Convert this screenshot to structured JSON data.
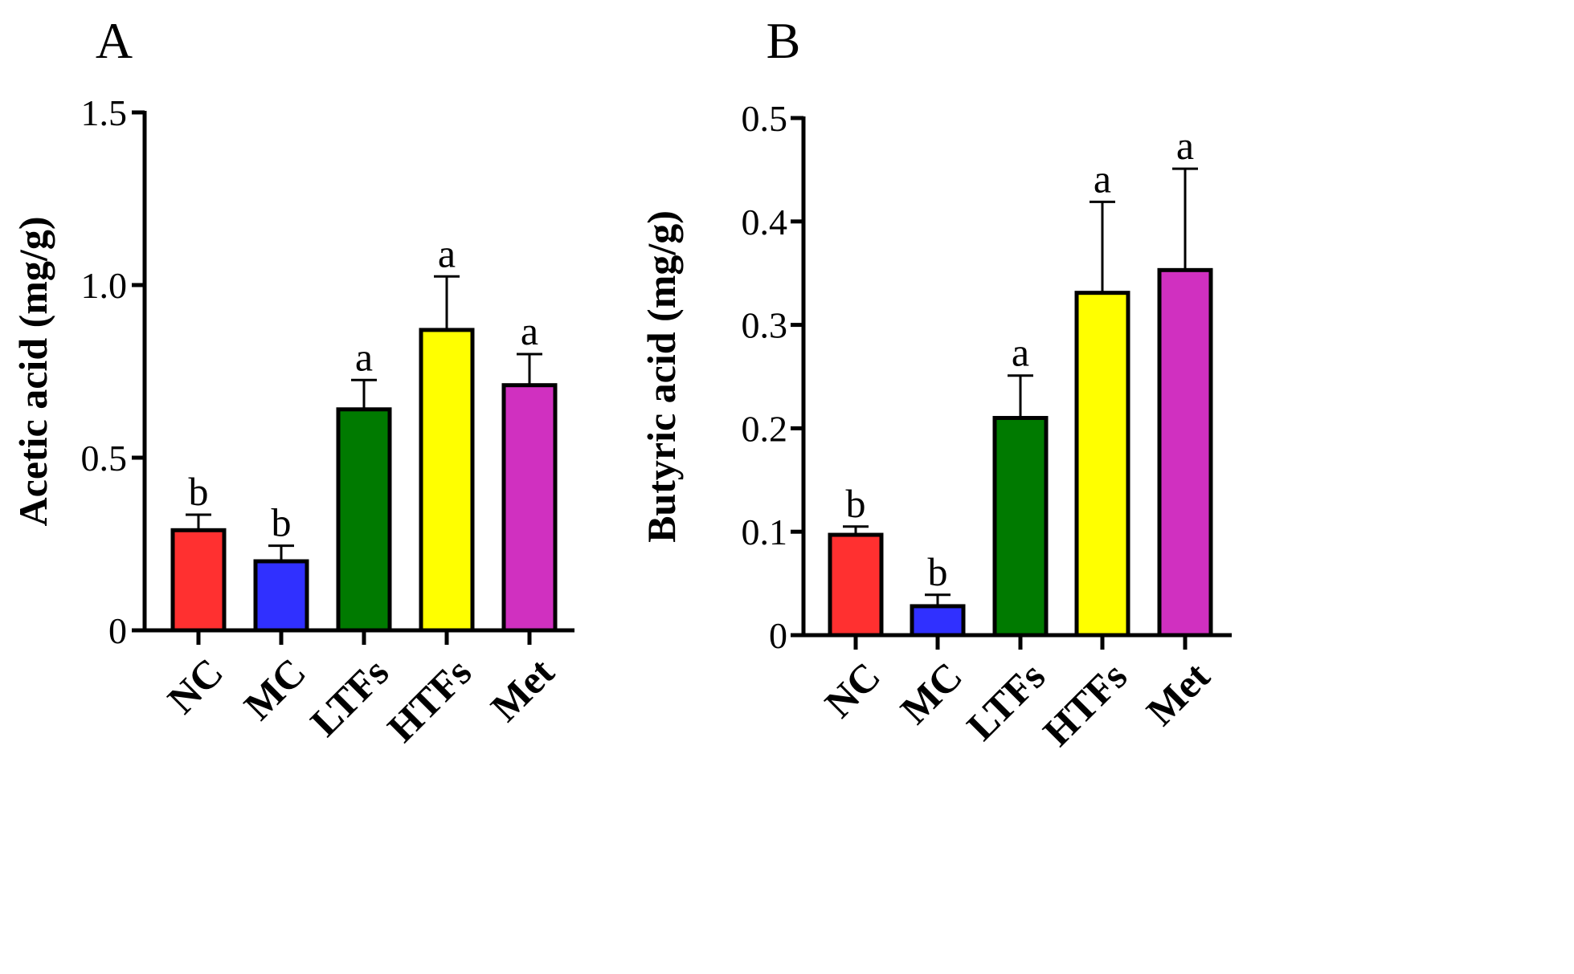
{
  "chart_data": [
    {
      "panel_label": "A",
      "type": "bar",
      "title": "",
      "xlabel": "",
      "ylabel": "Acetic acid (mg/g)",
      "ylim": [
        0,
        1.5
      ],
      "yticks": [
        {
          "value": 0,
          "label": "0"
        },
        {
          "value": 0.5,
          "label": "0.5"
        },
        {
          "value": 1.0,
          "label": "1.0"
        },
        {
          "value": 1.5,
          "label": "1.5"
        }
      ],
      "categories": [
        "NC",
        "MC",
        "LTFs",
        "HTFs",
        "Met"
      ],
      "values": [
        0.29,
        0.2,
        0.64,
        0.87,
        0.71
      ],
      "errors": [
        0.045,
        0.045,
        0.085,
        0.155,
        0.09
      ],
      "letters": [
        "b",
        "b",
        "a",
        "a",
        "a"
      ],
      "colors": [
        "#FF3030",
        "#3030FF",
        "#007A00",
        "#FFFF00",
        "#D030C0"
      ]
    },
    {
      "panel_label": "B",
      "type": "bar",
      "title": "",
      "xlabel": "",
      "ylabel": "Butyric acid (mg/g)",
      "ylim": [
        0,
        0.5
      ],
      "yticks": [
        {
          "value": 0,
          "label": "0"
        },
        {
          "value": 0.1,
          "label": "0.1"
        },
        {
          "value": 0.2,
          "label": "0.2"
        },
        {
          "value": 0.3,
          "label": "0.3"
        },
        {
          "value": 0.4,
          "label": "0.4"
        },
        {
          "value": 0.5,
          "label": "0.5"
        }
      ],
      "categories": [
        "NC",
        "MC",
        "LTFs",
        "HTFs",
        "Met"
      ],
      "values": [
        0.097,
        0.028,
        0.21,
        0.331,
        0.353
      ],
      "errors": [
        0.008,
        0.011,
        0.041,
        0.088,
        0.098
      ],
      "letters": [
        "b",
        "b",
        "a",
        "a",
        "a"
      ],
      "colors": [
        "#FF3030",
        "#3030FF",
        "#007A00",
        "#FFFF00",
        "#D030C0"
      ]
    }
  ]
}
